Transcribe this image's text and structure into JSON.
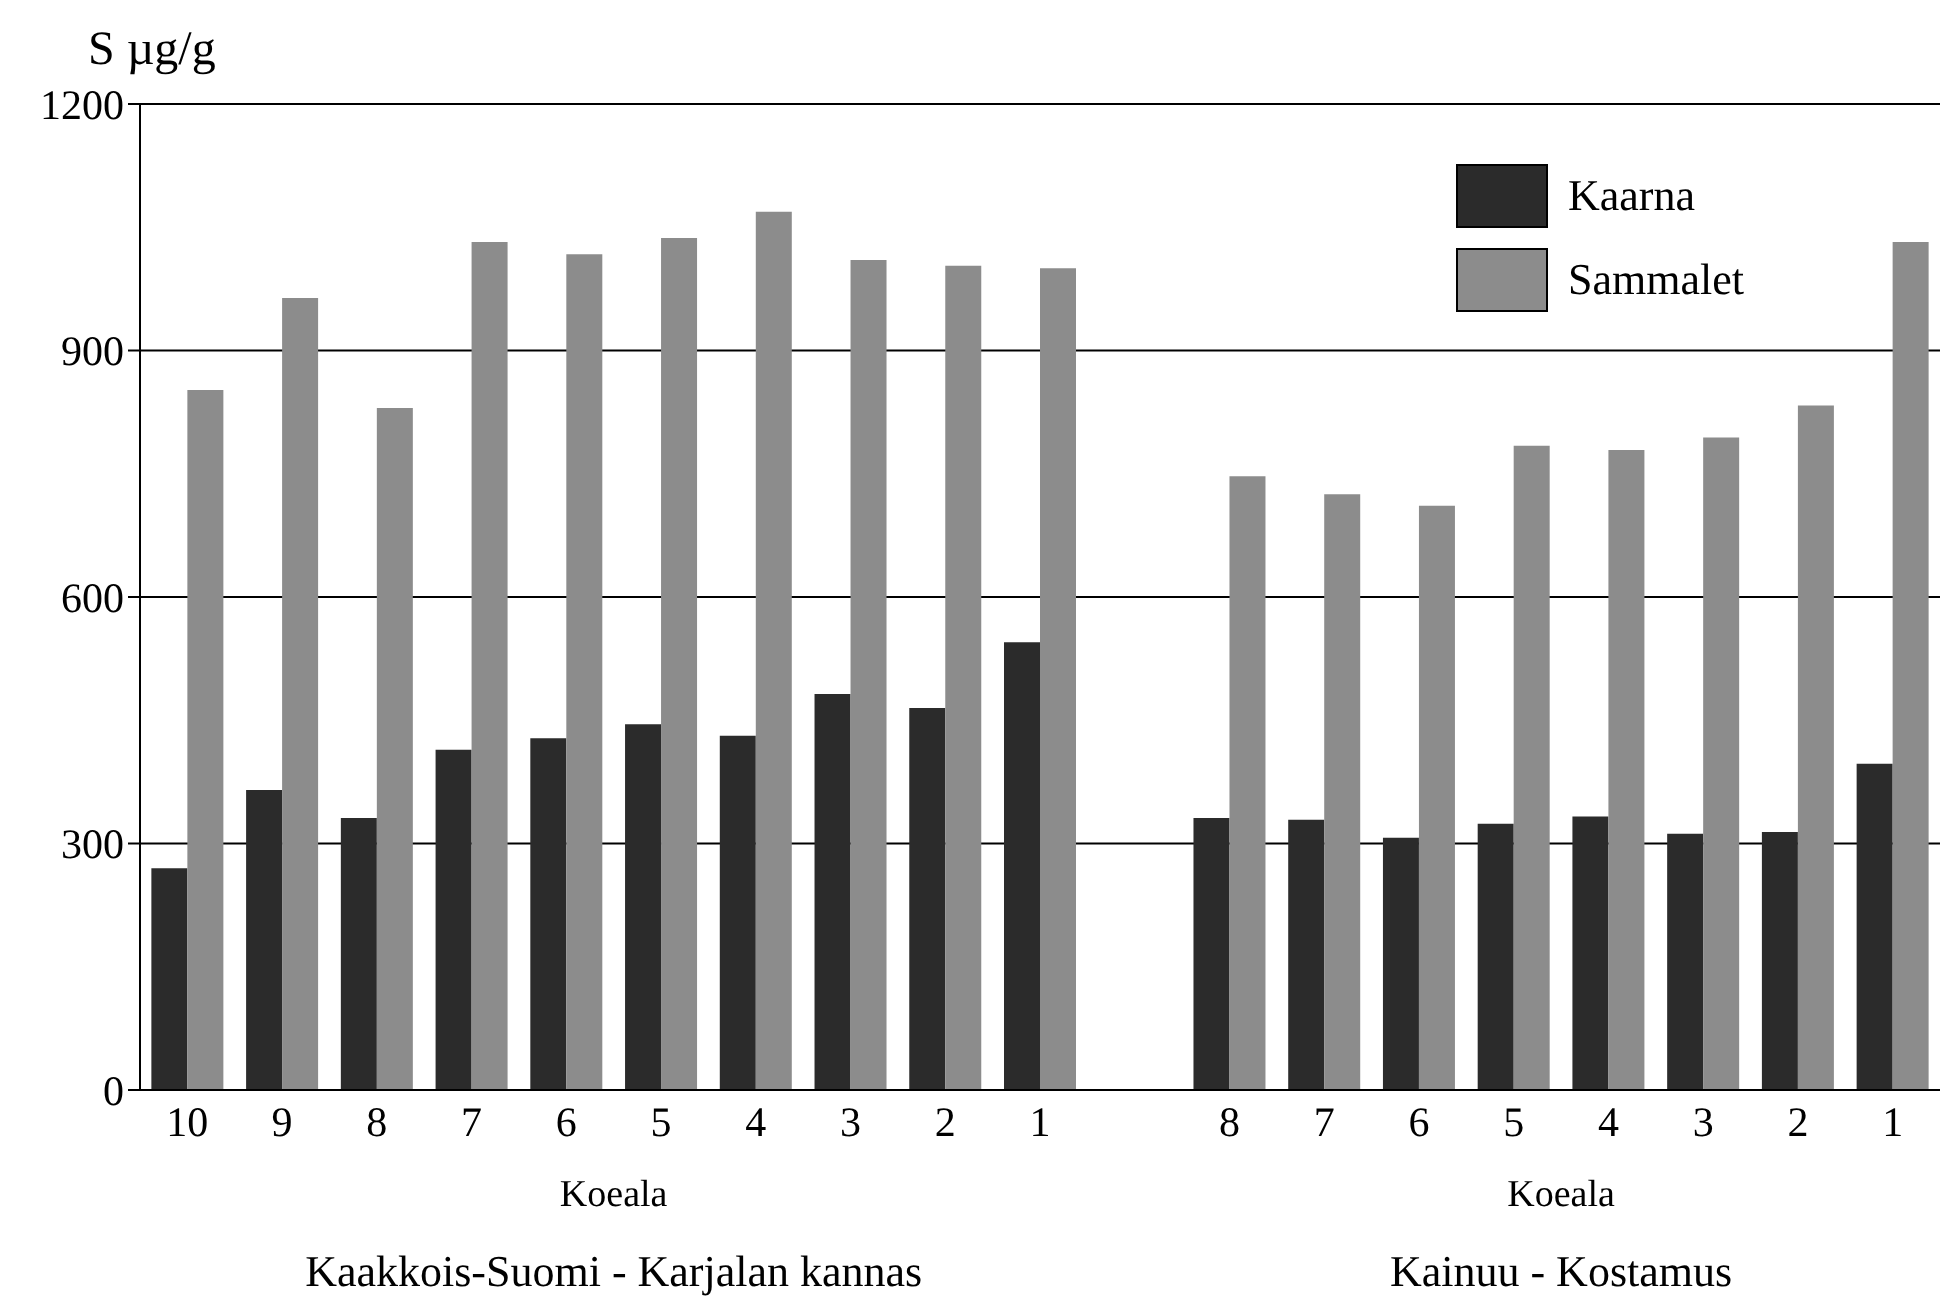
{
  "chart_data": {
    "type": "bar",
    "ylabel": "S µg/g",
    "categories": [
      "10",
      "9",
      "8",
      "7",
      "6",
      "5",
      "4",
      "3",
      "2",
      "1",
      null,
      "8",
      "7",
      "6",
      "5",
      "4",
      "3",
      "2",
      "1"
    ],
    "series": [
      {
        "name": "Kaarna",
        "color": "#2b2b2b",
        "values": [
          270,
          365,
          331,
          414,
          428,
          445,
          431,
          482,
          465,
          545,
          null,
          331,
          329,
          307,
          324,
          333,
          312,
          314,
          397
        ]
      },
      {
        "name": "Sammalet",
        "color": "#8c8c8c",
        "values": [
          852,
          964,
          830,
          1032,
          1017,
          1037,
          1069,
          1010,
          1003,
          1000,
          null,
          747,
          725,
          711,
          784,
          779,
          794,
          833,
          1032
        ]
      }
    ],
    "ylim": [
      0,
      1200
    ],
    "yticks": [
      0,
      300,
      600,
      900,
      1200
    ],
    "grid": "y",
    "legend": "top right",
    "annotations": [
      "Koeala",
      "Kaakkois-Suomi - Karjalan kannas",
      "Koeala",
      "Kainuu - Kostamus"
    ]
  }
}
